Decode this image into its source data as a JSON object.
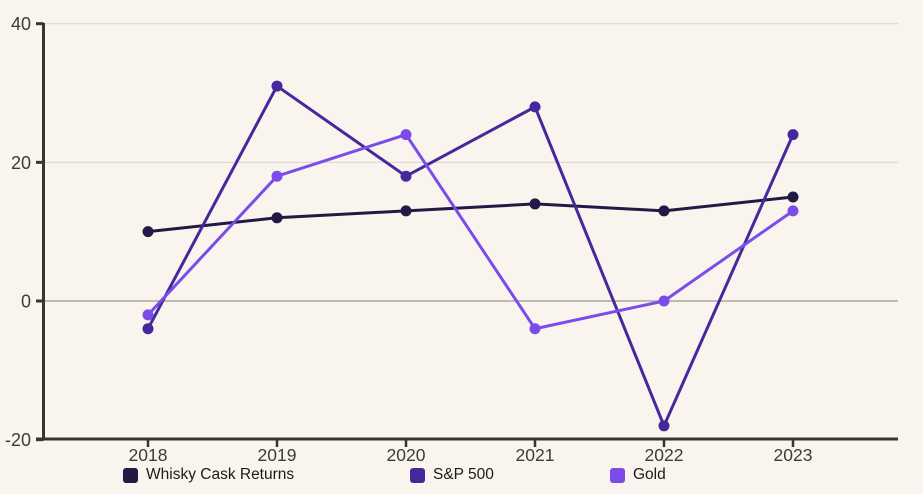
{
  "chart_data": {
    "type": "line",
    "categories": [
      "2018",
      "2019",
      "2020",
      "2021",
      "2022",
      "2023"
    ],
    "series": [
      {
        "name": "Whisky Cask Returns",
        "color": "#231945",
        "values": [
          10,
          12,
          13,
          14,
          13,
          15
        ]
      },
      {
        "name": "S&P 500",
        "color": "#45289c",
        "values": [
          -4,
          31,
          18,
          28,
          -18,
          24
        ]
      },
      {
        "name": "Gold",
        "color": "#7d4ce8",
        "values": [
          -2,
          18,
          24,
          -4,
          0,
          13
        ]
      }
    ],
    "ylim": [
      -20,
      40
    ],
    "yticks": [
      40,
      20,
      0,
      -20
    ],
    "grid": "horizontal-only",
    "legend_position": "bottom"
  },
  "style": {
    "background_color": "#faf4ee",
    "axis_color": "#38342f",
    "grid_color": "#dcd7d2",
    "zero_line_color": "#aba49f",
    "tick_label_color": "#3e3a36",
    "legend_text_color": "#1c1a19"
  }
}
